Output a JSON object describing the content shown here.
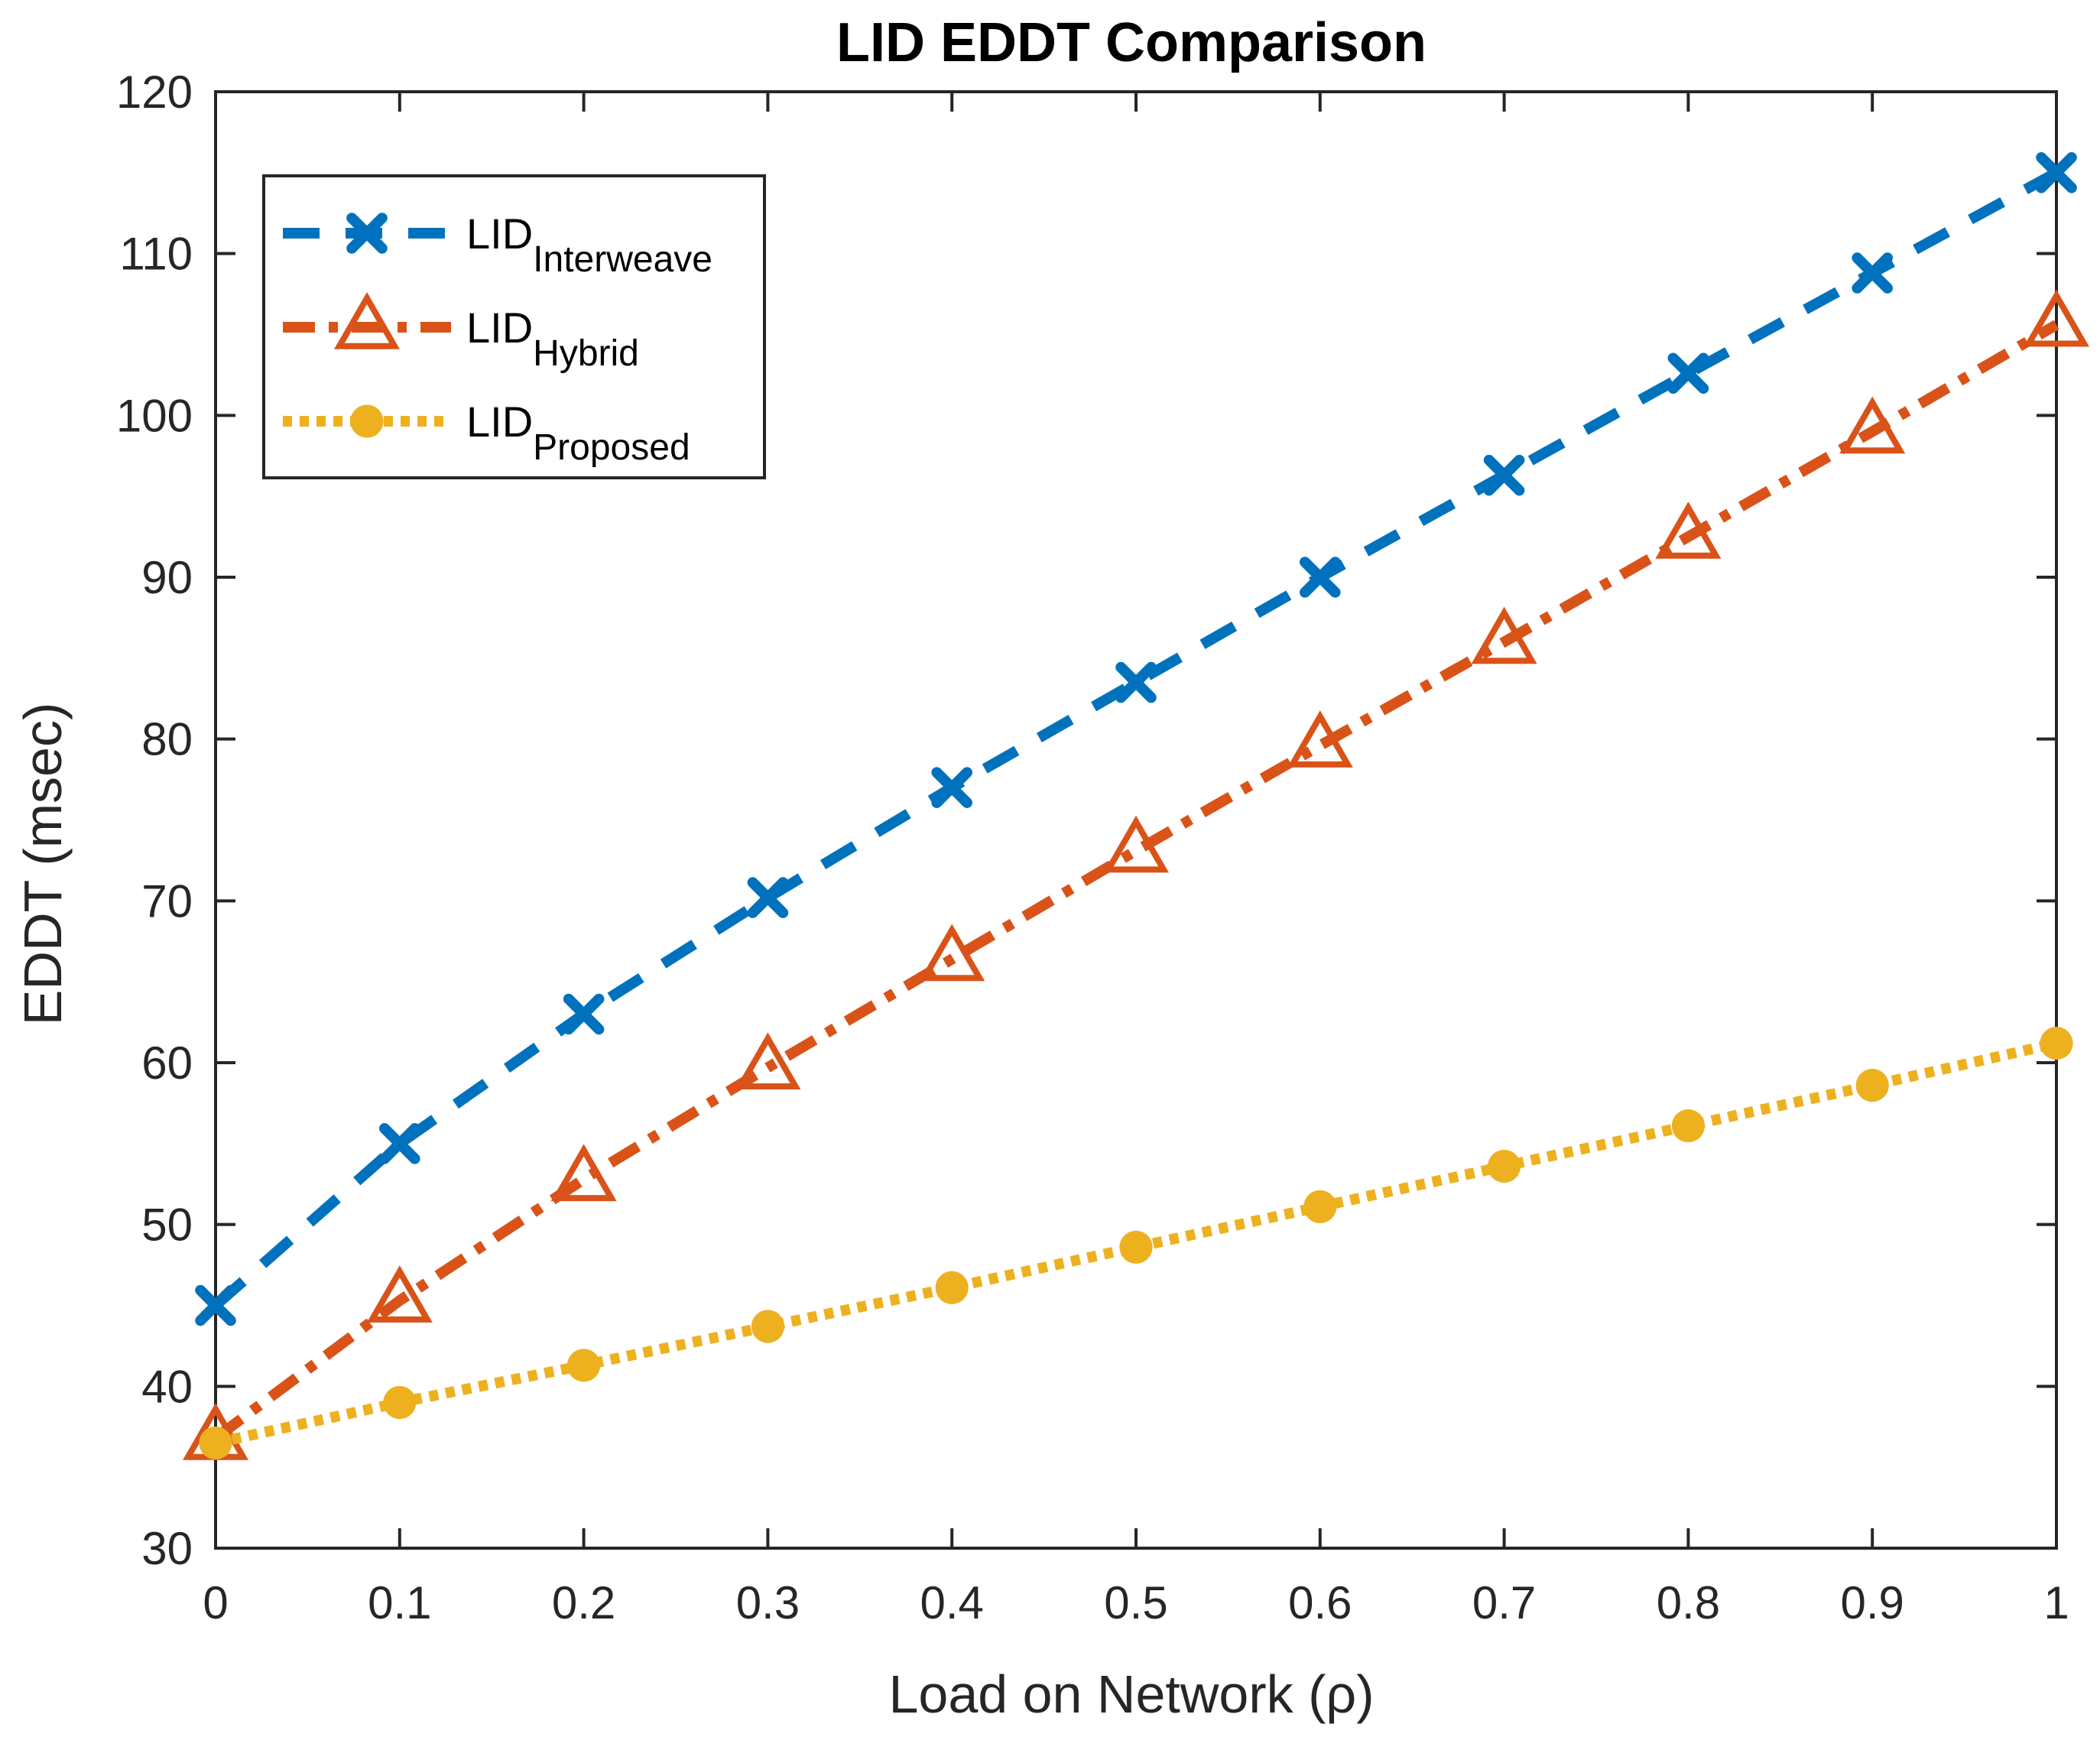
{
  "chart_data": {
    "type": "line",
    "title": "LID EDDT Comparison",
    "xlabel": "Load on Network (ρ)",
    "ylabel": "EDDT (msec)",
    "xlim": [
      0,
      1
    ],
    "ylim": [
      30,
      120
    ],
    "xticks": [
      "0",
      "0.1",
      "0.2",
      "0.3",
      "0.4",
      "0.5",
      "0.6",
      "0.7",
      "0.8",
      "0.9",
      "1"
    ],
    "yticks": [
      "30",
      "40",
      "50",
      "60",
      "70",
      "80",
      "90",
      "100",
      "110",
      "120"
    ],
    "x": [
      0,
      0.1,
      0.2,
      0.3,
      0.4,
      0.5,
      0.6,
      0.7,
      0.8,
      0.9,
      1.0
    ],
    "grid": false,
    "legend_position": "top-left",
    "series": [
      {
        "name_base": "LID",
        "name_sub": "Interweave",
        "color": "#0072BD",
        "line_style": "dashed",
        "marker": "x",
        "values": [
          45.0,
          55.0,
          63.0,
          70.2,
          77.0,
          83.5,
          90.0,
          96.3,
          102.6,
          108.8,
          115.0
        ]
      },
      {
        "name_base": "LID",
        "name_sub": "Hybrid",
        "color": "#D95319",
        "line_style": "dash-dot",
        "marker": "triangle",
        "values": [
          36.8,
          45.3,
          52.8,
          59.7,
          66.4,
          73.1,
          79.6,
          86.0,
          92.5,
          99.0,
          105.6
        ]
      },
      {
        "name_base": "LID",
        "name_sub": "Proposed",
        "color": "#EDB120",
        "line_style": "dotted",
        "marker": "circle",
        "values": [
          36.5,
          39.0,
          41.3,
          43.7,
          46.1,
          48.6,
          51.1,
          53.6,
          56.1,
          58.6,
          61.2
        ]
      }
    ]
  }
}
